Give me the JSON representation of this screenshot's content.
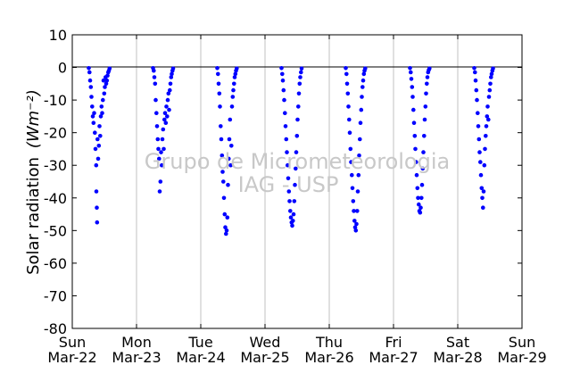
{
  "chart_data": {
    "type": "scatter",
    "title": "",
    "ylabel": "Solar radiation",
    "ylabel_unit": "(Wm⁻²)",
    "watermark": [
      "Grupo de Micrometeorologia",
      "IAG - USP"
    ],
    "ylim": [
      -80,
      10
    ],
    "yticks": [
      10,
      0,
      -10,
      -20,
      -30,
      -40,
      -50,
      -60,
      -70,
      -80
    ],
    "xlim": [
      "2015-03-22",
      "2015-03-29"
    ],
    "xticks": [
      {
        "day": "Sun",
        "date": "Mar-22"
      },
      {
        "day": "Mon",
        "date": "Mar-23"
      },
      {
        "day": "Tue",
        "date": "Mar-24"
      },
      {
        "day": "Wed",
        "date": "Mar-25"
      },
      {
        "day": "Thu",
        "date": "Mar-26"
      },
      {
        "day": "Fri",
        "date": "Mar-27"
      },
      {
        "day": "Sat",
        "date": "Mar-28"
      },
      {
        "day": "Sun",
        "date": "Mar-29"
      }
    ],
    "grid": "vertical",
    "zero_line": true,
    "marker_color": "#0000ff",
    "series": [
      {
        "points": [
          [
            "2015-03-22 06:10",
            -0.2
          ],
          [
            "2015-03-22 06:25",
            -1.5
          ],
          [
            "2015-03-22 06:40",
            -4
          ],
          [
            "2015-03-22 06:55",
            -6
          ],
          [
            "2015-03-22 07:10",
            -9
          ],
          [
            "2015-03-22 07:25",
            -12
          ],
          [
            "2015-03-22 07:40",
            -15
          ],
          [
            "2015-03-22 07:55",
            -17
          ],
          [
            "2015-03-22 08:10",
            -14
          ],
          [
            "2015-03-22 08:25",
            -20
          ],
          [
            "2015-03-22 08:40",
            -25
          ],
          [
            "2015-03-22 08:55",
            -30
          ],
          [
            "2015-03-22 09:00",
            -38
          ],
          [
            "2015-03-22 09:10",
            -43
          ],
          [
            "2015-03-22 09:15",
            -47.5
          ],
          [
            "2015-03-22 09:25",
            -22
          ],
          [
            "2015-03-22 09:40",
            -28
          ],
          [
            "2015-03-22 09:55",
            -24
          ],
          [
            "2015-03-22 10:10",
            -18
          ],
          [
            "2015-03-22 10:25",
            -21
          ],
          [
            "2015-03-22 10:40",
            -15
          ],
          [
            "2015-03-22 10:55",
            -12
          ],
          [
            "2015-03-22 11:10",
            -14
          ],
          [
            "2015-03-22 11:25",
            -10
          ],
          [
            "2015-03-22 11:40",
            -4
          ],
          [
            "2015-03-22 11:55",
            -8
          ],
          [
            "2015-03-22 12:10",
            -6
          ],
          [
            "2015-03-22 12:25",
            -3
          ],
          [
            "2015-03-22 12:40",
            -5
          ],
          [
            "2015-03-22 12:55",
            -4
          ],
          [
            "2015-03-22 13:10",
            -2.5
          ],
          [
            "2015-03-22 13:25",
            -1.5
          ],
          [
            "2015-03-22 13:40",
            -1
          ],
          [
            "2015-03-22 13:55",
            -0.3
          ]
        ]
      },
      {
        "points": [
          [
            "2015-03-23 06:10",
            -0.2
          ],
          [
            "2015-03-23 06:25",
            -1
          ],
          [
            "2015-03-23 06:40",
            -3
          ],
          [
            "2015-03-23 06:55",
            -5
          ],
          [
            "2015-03-23 07:10",
            -10
          ],
          [
            "2015-03-23 07:25",
            -14
          ],
          [
            "2015-03-23 07:40",
            -18
          ],
          [
            "2015-03-23 07:55",
            -22
          ],
          [
            "2015-03-23 08:10",
            -25
          ],
          [
            "2015-03-23 08:25",
            -28
          ],
          [
            "2015-03-23 08:40",
            -38
          ],
          [
            "2015-03-23 08:55",
            -35
          ],
          [
            "2015-03-23 09:10",
            -26
          ],
          [
            "2015-03-23 09:25",
            -30
          ],
          [
            "2015-03-23 09:40",
            -22
          ],
          [
            "2015-03-23 09:55",
            -19
          ],
          [
            "2015-03-23 10:10",
            -25
          ],
          [
            "2015-03-23 10:25",
            -16
          ],
          [
            "2015-03-23 10:40",
            -14
          ],
          [
            "2015-03-23 10:55",
            -17
          ],
          [
            "2015-03-23 11:10",
            -12
          ],
          [
            "2015-03-23 11:25",
            -15
          ],
          [
            "2015-03-23 11:40",
            -10
          ],
          [
            "2015-03-23 11:55",
            -8
          ],
          [
            "2015-03-23 12:10",
            -13
          ],
          [
            "2015-03-23 12:25",
            -7
          ],
          [
            "2015-03-23 12:40",
            -5
          ],
          [
            "2015-03-23 12:55",
            -3
          ],
          [
            "2015-03-23 13:10",
            -2
          ],
          [
            "2015-03-23 13:25",
            -1
          ],
          [
            "2015-03-23 13:40",
            -0.3
          ]
        ]
      },
      {
        "points": [
          [
            "2015-03-24 06:10",
            -0.2
          ],
          [
            "2015-03-24 06:25",
            -2
          ],
          [
            "2015-03-24 06:40",
            -5
          ],
          [
            "2015-03-24 06:55",
            -8
          ],
          [
            "2015-03-24 07:10",
            -12
          ],
          [
            "2015-03-24 07:25",
            -18
          ],
          [
            "2015-03-24 07:40",
            -22
          ],
          [
            "2015-03-24 07:55",
            -27
          ],
          [
            "2015-03-24 08:10",
            -32
          ],
          [
            "2015-03-24 08:25",
            -35
          ],
          [
            "2015-03-24 08:40",
            -40
          ],
          [
            "2015-03-24 08:55",
            -45
          ],
          [
            "2015-03-24 09:10",
            -49
          ],
          [
            "2015-03-24 09:25",
            -51
          ],
          [
            "2015-03-24 09:40",
            -50
          ],
          [
            "2015-03-24 09:55",
            -46
          ],
          [
            "2015-03-24 10:10",
            -36
          ],
          [
            "2015-03-24 10:25",
            -28
          ],
          [
            "2015-03-24 10:40",
            -22
          ],
          [
            "2015-03-24 10:55",
            -16
          ],
          [
            "2015-03-24 11:10",
            -30
          ],
          [
            "2015-03-24 11:25",
            -24
          ],
          [
            "2015-03-24 11:40",
            -12
          ],
          [
            "2015-03-24 11:55",
            -9
          ],
          [
            "2015-03-24 12:10",
            -7
          ],
          [
            "2015-03-24 12:25",
            -5
          ],
          [
            "2015-03-24 12:40",
            -3
          ],
          [
            "2015-03-24 12:55",
            -2
          ],
          [
            "2015-03-24 13:10",
            -1
          ],
          [
            "2015-03-24 13:25",
            -0.3
          ]
        ]
      },
      {
        "points": [
          [
            "2015-03-25 06:10",
            -0.2
          ],
          [
            "2015-03-25 06:25",
            -2
          ],
          [
            "2015-03-25 06:40",
            -4
          ],
          [
            "2015-03-25 06:55",
            -7
          ],
          [
            "2015-03-25 07:10",
            -10
          ],
          [
            "2015-03-25 07:25",
            -14
          ],
          [
            "2015-03-25 07:40",
            -18
          ],
          [
            "2015-03-25 07:55",
            -22
          ],
          [
            "2015-03-25 08:10",
            -26
          ],
          [
            "2015-03-25 08:25",
            -30
          ],
          [
            "2015-03-25 08:40",
            -34
          ],
          [
            "2015-03-25 08:55",
            -38
          ],
          [
            "2015-03-25 09:10",
            -41
          ],
          [
            "2015-03-25 09:25",
            -44
          ],
          [
            "2015-03-25 09:40",
            -46
          ],
          [
            "2015-03-25 09:55",
            -47.5
          ],
          [
            "2015-03-25 10:10",
            -48.5
          ],
          [
            "2015-03-25 10:25",
            -47
          ],
          [
            "2015-03-25 10:40",
            -45
          ],
          [
            "2015-03-25 10:55",
            -41
          ],
          [
            "2015-03-25 11:10",
            -36
          ],
          [
            "2015-03-25 11:25",
            -31
          ],
          [
            "2015-03-25 11:40",
            -26
          ],
          [
            "2015-03-25 11:55",
            -21
          ],
          [
            "2015-03-25 12:10",
            -16
          ],
          [
            "2015-03-25 12:25",
            -12
          ],
          [
            "2015-03-25 12:40",
            -8
          ],
          [
            "2015-03-25 12:55",
            -5
          ],
          [
            "2015-03-25 13:10",
            -3
          ],
          [
            "2015-03-25 13:25",
            -1.5
          ],
          [
            "2015-03-25 13:40",
            -0.3
          ]
        ]
      },
      {
        "points": [
          [
            "2015-03-26 06:10",
            -0.2
          ],
          [
            "2015-03-26 06:25",
            -2
          ],
          [
            "2015-03-26 06:40",
            -5
          ],
          [
            "2015-03-26 06:55",
            -8
          ],
          [
            "2015-03-26 07:10",
            -12
          ],
          [
            "2015-03-26 07:25",
            -16
          ],
          [
            "2015-03-26 07:40",
            -20
          ],
          [
            "2015-03-26 07:55",
            -25
          ],
          [
            "2015-03-26 08:10",
            -29
          ],
          [
            "2015-03-26 08:25",
            -33
          ],
          [
            "2015-03-26 08:40",
            -37
          ],
          [
            "2015-03-26 08:55",
            -41
          ],
          [
            "2015-03-26 09:10",
            -44
          ],
          [
            "2015-03-26 09:25",
            -47
          ],
          [
            "2015-03-26 09:40",
            -49
          ],
          [
            "2015-03-26 09:55",
            -50
          ],
          [
            "2015-03-26 10:10",
            -48
          ],
          [
            "2015-03-26 10:25",
            -44
          ],
          [
            "2015-03-26 10:40",
            -38
          ],
          [
            "2015-03-26 10:55",
            -33
          ],
          [
            "2015-03-26 11:10",
            -27
          ],
          [
            "2015-03-26 11:25",
            -22
          ],
          [
            "2015-03-26 11:40",
            -17
          ],
          [
            "2015-03-26 11:55",
            -13
          ],
          [
            "2015-03-26 12:10",
            -9
          ],
          [
            "2015-03-26 12:25",
            -6
          ],
          [
            "2015-03-26 12:40",
            -4
          ],
          [
            "2015-03-26 12:55",
            -2
          ],
          [
            "2015-03-26 13:10",
            -1
          ],
          [
            "2015-03-26 13:25",
            -0.3
          ]
        ]
      },
      {
        "points": [
          [
            "2015-03-27 06:10",
            -0.2
          ],
          [
            "2015-03-27 06:25",
            -1.5
          ],
          [
            "2015-03-27 06:40",
            -3.5
          ],
          [
            "2015-03-27 06:55",
            -6
          ],
          [
            "2015-03-27 07:10",
            -9
          ],
          [
            "2015-03-27 07:25",
            -13
          ],
          [
            "2015-03-27 07:40",
            -17
          ],
          [
            "2015-03-27 07:55",
            -21
          ],
          [
            "2015-03-27 08:10",
            -25
          ],
          [
            "2015-03-27 08:25",
            -29
          ],
          [
            "2015-03-27 08:40",
            -33
          ],
          [
            "2015-03-27 08:55",
            -37
          ],
          [
            "2015-03-27 09:10",
            -40
          ],
          [
            "2015-03-27 09:25",
            -42
          ],
          [
            "2015-03-27 09:40",
            -44
          ],
          [
            "2015-03-27 09:55",
            -44.5
          ],
          [
            "2015-03-27 10:10",
            -43
          ],
          [
            "2015-03-27 10:25",
            -40
          ],
          [
            "2015-03-27 10:40",
            -36
          ],
          [
            "2015-03-27 10:55",
            -31
          ],
          [
            "2015-03-27 11:10",
            -26
          ],
          [
            "2015-03-27 11:25",
            -21
          ],
          [
            "2015-03-27 11:40",
            -16
          ],
          [
            "2015-03-27 11:55",
            -12
          ],
          [
            "2015-03-27 12:10",
            -8
          ],
          [
            "2015-03-27 12:25",
            -5
          ],
          [
            "2015-03-27 12:40",
            -3
          ],
          [
            "2015-03-27 12:55",
            -1.5
          ],
          [
            "2015-03-27 13:10",
            -0.8
          ],
          [
            "2015-03-27 13:25",
            -0.3
          ]
        ]
      },
      {
        "points": [
          [
            "2015-03-28 06:10",
            -0.2
          ],
          [
            "2015-03-28 06:25",
            -1.5
          ],
          [
            "2015-03-28 06:40",
            -4
          ],
          [
            "2015-03-28 06:55",
            -7
          ],
          [
            "2015-03-28 07:10",
            -10
          ],
          [
            "2015-03-28 07:25",
            -14
          ],
          [
            "2015-03-28 07:40",
            -18
          ],
          [
            "2015-03-28 07:55",
            -22
          ],
          [
            "2015-03-28 08:10",
            -26
          ],
          [
            "2015-03-28 08:25",
            -29
          ],
          [
            "2015-03-28 08:40",
            -33
          ],
          [
            "2015-03-28 08:55",
            -37
          ],
          [
            "2015-03-28 09:10",
            -40
          ],
          [
            "2015-03-28 09:25",
            -43
          ],
          [
            "2015-03-28 09:40",
            -38
          ],
          [
            "2015-03-28 09:55",
            -30
          ],
          [
            "2015-03-28 10:10",
            -25
          ],
          [
            "2015-03-28 10:25",
            -21
          ],
          [
            "2015-03-28 10:40",
            -18
          ],
          [
            "2015-03-28 10:55",
            -15
          ],
          [
            "2015-03-28 11:10",
            -12
          ],
          [
            "2015-03-28 11:25",
            -16
          ],
          [
            "2015-03-28 11:40",
            -9
          ],
          [
            "2015-03-28 11:55",
            -7
          ],
          [
            "2015-03-28 12:10",
            -5
          ],
          [
            "2015-03-28 12:25",
            -3
          ],
          [
            "2015-03-28 12:40",
            -2
          ],
          [
            "2015-03-28 12:55",
            -1
          ],
          [
            "2015-03-28 13:10",
            -0.3
          ]
        ]
      }
    ]
  }
}
